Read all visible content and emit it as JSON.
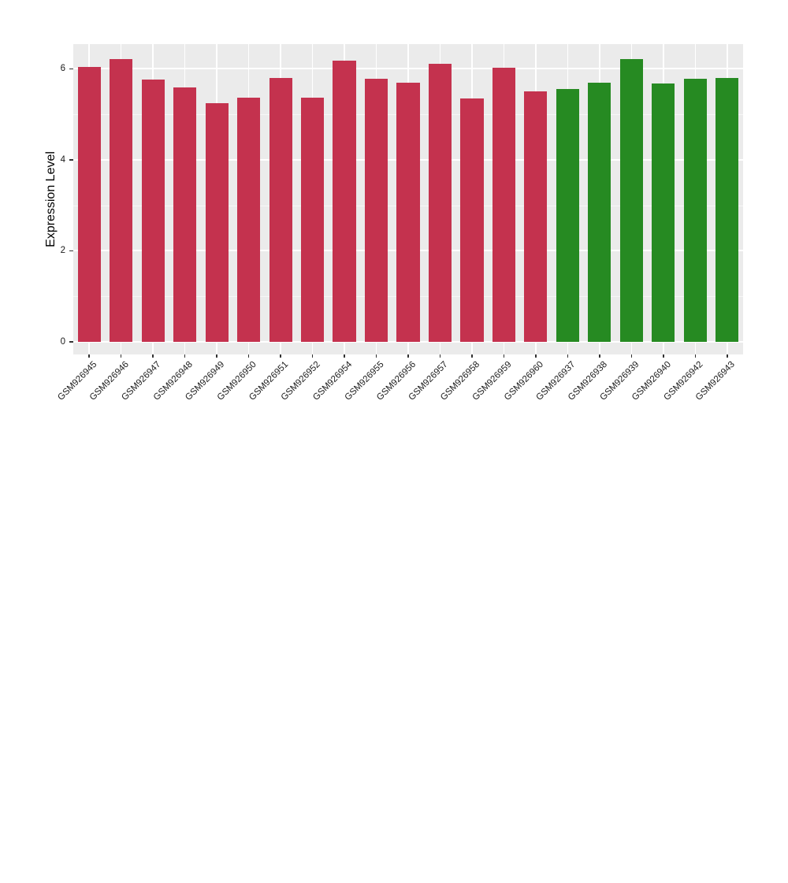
{
  "chart_data": {
    "type": "bar",
    "title": "",
    "ylabel": "Expression Level",
    "xlabel": "",
    "categories": [
      "GSM926945",
      "GSM926946",
      "GSM926947",
      "GSM926948",
      "GSM926949",
      "GSM926950",
      "GSM926951",
      "GSM926952",
      "GSM926954",
      "GSM926955",
      "GSM926956",
      "GSM926957",
      "GSM926958",
      "GSM926959",
      "GSM926960",
      "GSM926937",
      "GSM926938",
      "GSM926939",
      "GSM926940",
      "GSM926942",
      "GSM926943"
    ],
    "values": [
      6.04,
      6.21,
      5.77,
      5.59,
      5.24,
      5.36,
      5.79,
      5.37,
      6.17,
      5.78,
      5.69,
      6.11,
      5.34,
      6.02,
      5.51,
      5.55,
      5.69,
      6.21,
      5.67,
      5.78,
      5.8
    ],
    "bar_groups": [
      "red",
      "red",
      "red",
      "red",
      "red",
      "red",
      "red",
      "red",
      "red",
      "red",
      "red",
      "red",
      "red",
      "red",
      "red",
      "green",
      "green",
      "green",
      "green",
      "green",
      "green"
    ],
    "group_colors": {
      "red": "#C4324E",
      "green": "#268A22"
    },
    "yticks": [
      0,
      2,
      4,
      6
    ],
    "minor_yticks": [
      1,
      3,
      5
    ],
    "ylim": [
      -0.28,
      6.54
    ],
    "grid": "horizontal major+minor, vertical at category centers",
    "legend": "none",
    "panel_background": "#EBEBEB",
    "major_grid_color": "#FFFFFF",
    "minor_grid_color": "#F7F7F7",
    "axis_text_color": "#1A1A1A",
    "tick_mark_color": "#333333"
  }
}
